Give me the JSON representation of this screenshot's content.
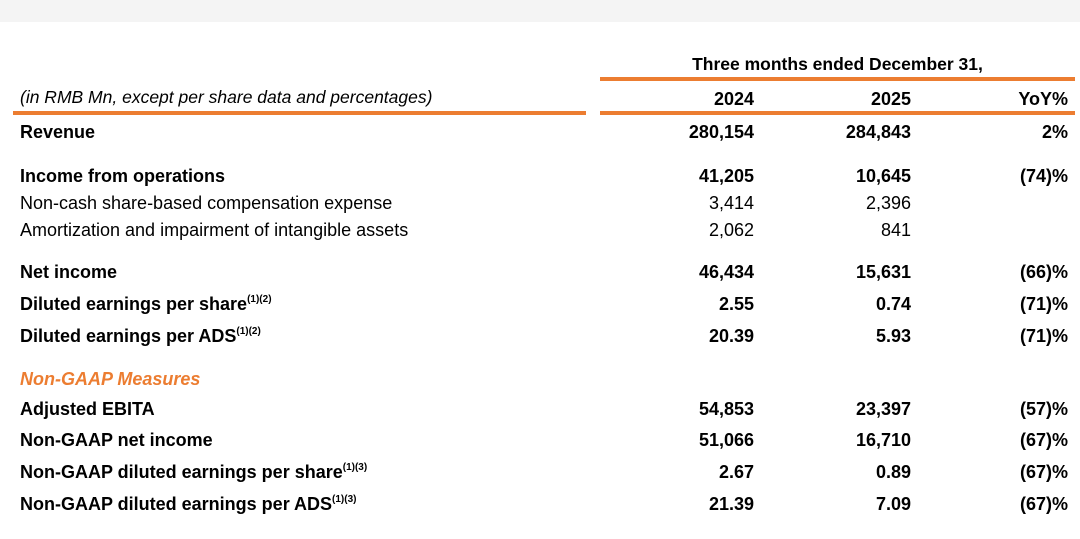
{
  "header": {
    "period": "Three months ended December 31,",
    "units_note": "(in RMB Mn, except per share data and percentages)",
    "columns": [
      "2024",
      "2025",
      "YoY%"
    ]
  },
  "rows": [
    {
      "label": "Revenue",
      "sup": "",
      "bold": true,
      "v2024": "280,154",
      "v2025": "284,843",
      "yoy": "2%"
    },
    {
      "label": "Income from operations",
      "sup": "",
      "bold": true,
      "v2024": "41,205",
      "v2025": "10,645",
      "yoy": "(74)%"
    },
    {
      "label": "Non-cash share-based compensation expense",
      "sup": "",
      "bold": false,
      "v2024": "3,414",
      "v2025": "2,396",
      "yoy": ""
    },
    {
      "label": "Amortization and impairment of intangible assets",
      "sup": "",
      "bold": false,
      "v2024": "2,062",
      "v2025": "841",
      "yoy": ""
    },
    {
      "label": "Net income",
      "sup": "",
      "bold": true,
      "v2024": "46,434",
      "v2025": "15,631",
      "yoy": "(66)%"
    },
    {
      "label": "Diluted earnings per share",
      "sup": "(1)(2)",
      "bold": true,
      "v2024": "2.55",
      "v2025": "0.74",
      "yoy": "(71)%"
    },
    {
      "label": "Diluted earnings per ADS",
      "sup": "(1)(2)",
      "bold": true,
      "v2024": "20.39",
      "v2025": "5.93",
      "yoy": "(71)%"
    }
  ],
  "non_gaap": {
    "title": "Non-GAAP Measures",
    "rows": [
      {
        "label": "Adjusted EBITA",
        "sup": "",
        "bold": true,
        "v2024": "54,853",
        "v2025": "23,397",
        "yoy": "(57)%"
      },
      {
        "label": "Non-GAAP net income",
        "sup": "",
        "bold": true,
        "v2024": "51,066",
        "v2025": "16,710",
        "yoy": "(67)%"
      },
      {
        "label": "Non-GAAP diluted earnings per share",
        "sup": "(1)(3)",
        "bold": true,
        "v2024": "2.67",
        "v2025": "0.89",
        "yoy": "(67)%"
      },
      {
        "label": "Non-GAAP diluted earnings per ADS",
        "sup": "(1)(3)",
        "bold": true,
        "v2024": "21.39",
        "v2025": "7.09",
        "yoy": "(67)%"
      }
    ]
  },
  "colors": {
    "accent": "#ec7d31"
  }
}
